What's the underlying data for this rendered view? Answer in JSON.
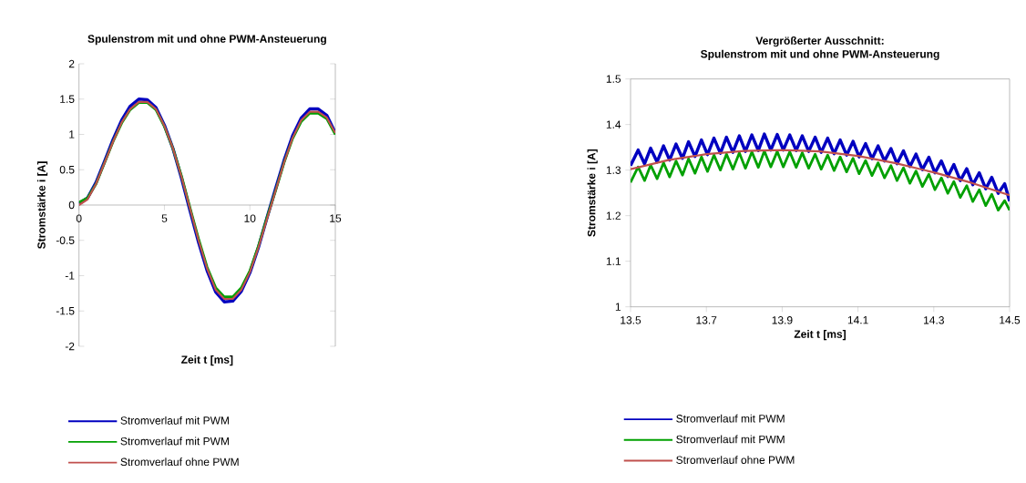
{
  "chart_data": [
    {
      "type": "line",
      "title": "Spulenstrom mit und ohne PWM-Ansteuerung",
      "xlabel": "Zeit t [ms]",
      "ylabel": "Stromstärke i [A]",
      "x": [
        0,
        0.5,
        1,
        1.5,
        2,
        2.5,
        3,
        3.5,
        4,
        4.5,
        5,
        5.5,
        6,
        6.5,
        7,
        7.5,
        8,
        8.5,
        9,
        9.5,
        10,
        10.5,
        11,
        11.5,
        12,
        12.5,
        13,
        13.5,
        14,
        14.5,
        15
      ],
      "xlim": [
        0,
        15
      ],
      "xticks": [
        0,
        5,
        10,
        15
      ],
      "ylim": [
        -2,
        2
      ],
      "yticks": [
        -2,
        -1.5,
        -1,
        -0.5,
        0,
        0.5,
        1,
        1.5,
        2
      ],
      "legend": "bottom",
      "series": [
        {
          "name": "Stromverlauf mit PWM",
          "color": "#0000c0",
          "values": [
            0.02,
            0.1,
            0.32,
            0.62,
            0.93,
            1.2,
            1.4,
            1.5,
            1.49,
            1.38,
            1.13,
            0.8,
            0.38,
            -0.08,
            -0.53,
            -0.93,
            -1.23,
            -1.37,
            -1.36,
            -1.22,
            -0.96,
            -0.6,
            -0.18,
            0.23,
            0.63,
            0.98,
            1.23,
            1.36,
            1.36,
            1.27,
            1.02
          ]
        },
        {
          "name": "Stromverlauf mit PWM",
          "color": "#00a000",
          "values": [
            0.04,
            0.1,
            0.3,
            0.6,
            0.9,
            1.16,
            1.35,
            1.45,
            1.45,
            1.35,
            1.11,
            0.8,
            0.41,
            -0.04,
            -0.48,
            -0.88,
            -1.17,
            -1.3,
            -1.3,
            -1.17,
            -0.93,
            -0.58,
            -0.18,
            0.2,
            0.6,
            0.94,
            1.18,
            1.3,
            1.3,
            1.22,
            1.0
          ]
        },
        {
          "name": "Stromverlauf ohne PWM",
          "color": "#c0504d",
          "values": [
            0,
            0.08,
            0.3,
            0.6,
            0.9,
            1.17,
            1.36,
            1.46,
            1.46,
            1.36,
            1.12,
            0.8,
            0.4,
            -0.05,
            -0.5,
            -0.9,
            -1.2,
            -1.33,
            -1.33,
            -1.2,
            -0.95,
            -0.6,
            -0.2,
            0.2,
            0.6,
            0.95,
            1.2,
            1.32,
            1.32,
            1.24,
            1.02
          ]
        }
      ]
    },
    {
      "type": "line",
      "title": "Vergrößerter Ausschnitt:",
      "subtitle": "Spulenstrom mit und ohne PWM-Ansteuerung",
      "xlabel": "Zeit t [ms]",
      "ylabel": "Stromstärke i [A]",
      "x": [
        13.5,
        13.52,
        13.537,
        13.553,
        13.57,
        13.587,
        13.603,
        13.62,
        13.637,
        13.653,
        13.67,
        13.687,
        13.703,
        13.72,
        13.737,
        13.753,
        13.77,
        13.787,
        13.803,
        13.82,
        13.837,
        13.853,
        13.87,
        13.887,
        13.903,
        13.92,
        13.937,
        13.953,
        13.97,
        13.987,
        14.003,
        14.02,
        14.037,
        14.053,
        14.07,
        14.087,
        14.103,
        14.12,
        14.137,
        14.153,
        14.17,
        14.187,
        14.203,
        14.22,
        14.237,
        14.253,
        14.27,
        14.287,
        14.303,
        14.32,
        14.337,
        14.353,
        14.37,
        14.387,
        14.403,
        14.42,
        14.437,
        14.453,
        14.47,
        14.487,
        14.5
      ],
      "xlim": [
        13.5,
        14.5
      ],
      "xticks": [
        13.5,
        13.7,
        13.9,
        14.1,
        14.3,
        14.5
      ],
      "ylim": [
        1,
        1.5
      ],
      "yticks": [
        1,
        1.1,
        1.2,
        1.3,
        1.4,
        1.5
      ],
      "legend": "bottom",
      "series": [
        {
          "name": "Stromverlauf mit PWM",
          "color": "#0000c0",
          "values": [
            1.31,
            1.344,
            1.314,
            1.348,
            1.318,
            1.353,
            1.322,
            1.357,
            1.326,
            1.362,
            1.33,
            1.366,
            1.334,
            1.37,
            1.337,
            1.372,
            1.339,
            1.375,
            1.341,
            1.377,
            1.343,
            1.379,
            1.344,
            1.378,
            1.344,
            1.377,
            1.343,
            1.375,
            1.341,
            1.372,
            1.339,
            1.37,
            1.336,
            1.366,
            1.333,
            1.363,
            1.329,
            1.358,
            1.325,
            1.353,
            1.32,
            1.347,
            1.314,
            1.342,
            1.308,
            1.335,
            1.301,
            1.328,
            1.294,
            1.32,
            1.286,
            1.312,
            1.277,
            1.303,
            1.268,
            1.294,
            1.259,
            1.284,
            1.249,
            1.27,
            1.232
          ]
        },
        {
          "name": "Stromverlauf mit PWM",
          "color": "#00a000",
          "values": [
            1.273,
            1.307,
            1.277,
            1.311,
            1.281,
            1.316,
            1.285,
            1.32,
            1.289,
            1.325,
            1.293,
            1.329,
            1.297,
            1.333,
            1.3,
            1.335,
            1.302,
            1.338,
            1.304,
            1.34,
            1.306,
            1.342,
            1.307,
            1.341,
            1.307,
            1.34,
            1.306,
            1.338,
            1.304,
            1.335,
            1.302,
            1.333,
            1.299,
            1.329,
            1.296,
            1.326,
            1.292,
            1.321,
            1.288,
            1.316,
            1.283,
            1.31,
            1.277,
            1.305,
            1.271,
            1.298,
            1.264,
            1.291,
            1.257,
            1.283,
            1.249,
            1.275,
            1.24,
            1.266,
            1.231,
            1.257,
            1.222,
            1.247,
            1.212,
            1.233,
            1.212
          ]
        },
        {
          "name": "Stromverlauf ohne PWM",
          "color": "#c0504d",
          "x": [
            13.5,
            13.6,
            13.7,
            13.8,
            13.9,
            14.0,
            14.1,
            14.2,
            14.3,
            14.4,
            14.5
          ],
          "values": [
            1.302,
            1.322,
            1.335,
            1.342,
            1.344,
            1.341,
            1.331,
            1.315,
            1.295,
            1.272,
            1.245
          ]
        }
      ]
    }
  ]
}
